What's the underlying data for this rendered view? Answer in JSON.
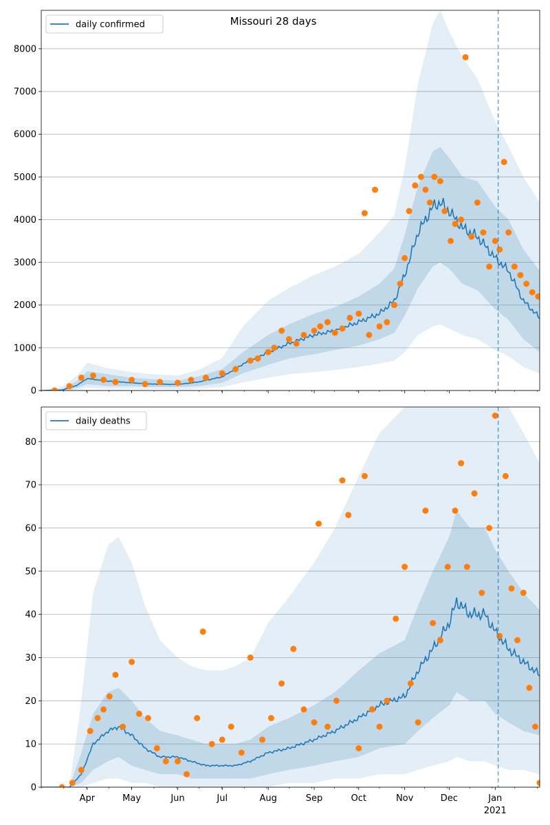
{
  "chart_data": [
    {
      "type": "line",
      "title": "Missouri 28 days",
      "legend": {
        "label": "daily confirmed",
        "position": "top-left"
      },
      "xlim": [
        "2020-03-01",
        "2021-01-31"
      ],
      "ylim": [
        0,
        8900
      ],
      "yticks": [
        0,
        1000,
        2000,
        3000,
        4000,
        5000,
        6000,
        7000,
        8000
      ],
      "grid": "horizontal",
      "colors": {
        "line": "#1f77b4",
        "points": "#ff7f0e",
        "band": "#1f77b4",
        "vline": "#1f77b4"
      },
      "vline_date": "2021-01-03",
      "series": [
        {
          "name": "daily confirmed",
          "x": [
            "2020-03-01",
            "2020-03-15",
            "2020-03-25",
            "2020-04-01",
            "2020-04-15",
            "2020-05-01",
            "2020-05-15",
            "2020-06-01",
            "2020-06-15",
            "2020-07-01",
            "2020-07-15",
            "2020-08-01",
            "2020-08-15",
            "2020-09-01",
            "2020-09-15",
            "2020-10-01",
            "2020-10-15",
            "2020-10-25",
            "2020-11-01",
            "2020-11-10",
            "2020-11-20",
            "2020-11-25",
            "2020-12-01",
            "2020-12-10",
            "2020-12-20",
            "2021-01-01",
            "2021-01-10",
            "2021-01-20",
            "2021-01-31"
          ],
          "values": [
            0,
            10,
            120,
            280,
            220,
            180,
            150,
            140,
            200,
            320,
            620,
            900,
            1100,
            1300,
            1400,
            1600,
            1800,
            2100,
            2700,
            3700,
            4300,
            4400,
            4200,
            3800,
            3600,
            3100,
            2800,
            2100,
            1700
          ],
          "band_inner": [
            [
              0,
              0
            ],
            [
              0,
              40
            ],
            [
              60,
              220
            ],
            [
              150,
              450
            ],
            [
              100,
              380
            ],
            [
              100,
              300
            ],
            [
              80,
              260
            ],
            [
              80,
              230
            ],
            [
              100,
              330
            ],
            [
              180,
              500
            ],
            [
              400,
              900
            ],
            [
              600,
              1300
            ],
            [
              750,
              1550
            ],
            [
              850,
              1800
            ],
            [
              950,
              1950
            ],
            [
              1050,
              2200
            ],
            [
              1200,
              2500
            ],
            [
              1350,
              2850
            ],
            [
              1750,
              3650
            ],
            [
              2400,
              4800
            ],
            [
              2900,
              5600
            ],
            [
              3000,
              5700
            ],
            [
              2850,
              5450
            ],
            [
              2500,
              5000
            ],
            [
              2350,
              4900
            ],
            [
              1900,
              4300
            ],
            [
              1650,
              4000
            ],
            [
              1200,
              3300
            ],
            [
              900,
              2800
            ]
          ],
          "band_outer": [
            [
              0,
              0
            ],
            [
              0,
              90
            ],
            [
              20,
              350
            ],
            [
              70,
              650
            ],
            [
              40,
              520
            ],
            [
              40,
              430
            ],
            [
              30,
              380
            ],
            [
              30,
              350
            ],
            [
              40,
              480
            ],
            [
              80,
              760
            ],
            [
              190,
              1500
            ],
            [
              300,
              2100
            ],
            [
              380,
              2400
            ],
            [
              430,
              2700
            ],
            [
              480,
              2900
            ],
            [
              550,
              3200
            ],
            [
              630,
              3700
            ],
            [
              700,
              4100
            ],
            [
              900,
              5200
            ],
            [
              1300,
              7200
            ],
            [
              1500,
              8600
            ],
            [
              1550,
              8900
            ],
            [
              1450,
              8400
            ],
            [
              1300,
              7800
            ],
            [
              1200,
              7300
            ],
            [
              950,
              6300
            ],
            [
              800,
              5700
            ],
            [
              550,
              5000
            ],
            [
              400,
              4400
            ]
          ],
          "observed_x": [
            "2020-03-10",
            "2020-03-20",
            "2020-03-28",
            "2020-04-05",
            "2020-04-12",
            "2020-04-20",
            "2020-05-01",
            "2020-05-10",
            "2020-05-20",
            "2020-06-01",
            "2020-06-10",
            "2020-06-20",
            "2020-07-01",
            "2020-07-10",
            "2020-07-20",
            "2020-07-25",
            "2020-08-01",
            "2020-08-05",
            "2020-08-10",
            "2020-08-15",
            "2020-08-20",
            "2020-08-25",
            "2020-09-01",
            "2020-09-05",
            "2020-09-10",
            "2020-09-15",
            "2020-09-20",
            "2020-09-25",
            "2020-10-01",
            "2020-10-05",
            "2020-10-08",
            "2020-10-12",
            "2020-10-15",
            "2020-10-20",
            "2020-10-25",
            "2020-10-29",
            "2020-11-01",
            "2020-11-04",
            "2020-11-08",
            "2020-11-12",
            "2020-11-15",
            "2020-11-18",
            "2020-11-21",
            "2020-11-25",
            "2020-11-28",
            "2020-12-02",
            "2020-12-05",
            "2020-12-09",
            "2020-12-12",
            "2020-12-16",
            "2020-12-20",
            "2020-12-24",
            "2020-12-28",
            "2021-01-01",
            "2021-01-04",
            "2021-01-07",
            "2021-01-10",
            "2021-01-14",
            "2021-01-18",
            "2021-01-22",
            "2021-01-26",
            "2021-01-30"
          ],
          "observed": [
            0,
            100,
            300,
            350,
            250,
            200,
            250,
            150,
            200,
            180,
            250,
            300,
            400,
            500,
            700,
            750,
            900,
            1000,
            1400,
            1200,
            1100,
            1300,
            1400,
            1500,
            1600,
            1350,
            1450,
            1700,
            1800,
            4150,
            1300,
            4700,
            1500,
            1600,
            2000,
            2500,
            3100,
            4200,
            4800,
            5000,
            4700,
            4400,
            5000,
            4900,
            4200,
            3500,
            3900,
            4000,
            7800,
            3600,
            4400,
            3700,
            2900,
            3500,
            3300,
            5350,
            3700,
            2900,
            2700,
            2500,
            2300,
            2200
          ]
        }
      ]
    },
    {
      "type": "line",
      "title": "",
      "legend": {
        "label": "daily deaths",
        "position": "top-left"
      },
      "xlim": [
        "2020-03-01",
        "2021-01-31"
      ],
      "ylim": [
        0,
        88
      ],
      "yticks": [
        0,
        10,
        20,
        30,
        40,
        50,
        60,
        70,
        80
      ],
      "xticks": [
        {
          "date": "2020-04-01",
          "label": "Apr"
        },
        {
          "date": "2020-05-01",
          "label": "May"
        },
        {
          "date": "2020-06-01",
          "label": "Jun"
        },
        {
          "date": "2020-07-01",
          "label": "Jul"
        },
        {
          "date": "2020-08-01",
          "label": "Aug"
        },
        {
          "date": "2020-09-01",
          "label": "Sep"
        },
        {
          "date": "2020-10-01",
          "label": "Oct"
        },
        {
          "date": "2020-11-01",
          "label": "Nov"
        },
        {
          "date": "2020-12-01",
          "label": "Dec"
        },
        {
          "date": "2021-01-01",
          "label": "Jan"
        }
      ],
      "year_label": "2021",
      "grid": "horizontal",
      "colors": {
        "line": "#1f77b4",
        "points": "#ff7f0e",
        "band": "#1f77b4",
        "vline": "#1f77b4"
      },
      "vline_date": "2021-01-03",
      "series": [
        {
          "name": "daily deaths",
          "x": [
            "2020-03-01",
            "2020-03-20",
            "2020-03-28",
            "2020-04-05",
            "2020-04-15",
            "2020-04-22",
            "2020-05-01",
            "2020-05-10",
            "2020-05-20",
            "2020-06-01",
            "2020-06-10",
            "2020-06-20",
            "2020-07-01",
            "2020-07-10",
            "2020-07-20",
            "2020-08-01",
            "2020-08-15",
            "2020-09-01",
            "2020-09-15",
            "2020-10-01",
            "2020-10-15",
            "2020-11-01",
            "2020-11-10",
            "2020-11-20",
            "2020-12-01",
            "2020-12-06",
            "2020-12-15",
            "2020-12-25",
            "2021-01-01",
            "2021-01-10",
            "2021-01-20",
            "2021-01-31"
          ],
          "values": [
            0,
            0,
            3,
            10,
            13,
            14,
            12,
            9,
            7,
            7,
            6,
            5,
            5,
            5,
            6,
            8,
            9,
            11,
            13,
            16,
            19,
            21,
            27,
            32,
            38,
            43,
            40,
            40,
            36,
            32,
            29,
            26
          ],
          "band_inner": [
            [
              0,
              0
            ],
            [
              0,
              0
            ],
            [
              1,
              8
            ],
            [
              4,
              17
            ],
            [
              6,
              22
            ],
            [
              7,
              23
            ],
            [
              5,
              20
            ],
            [
              4,
              16
            ],
            [
              3,
              13
            ],
            [
              3,
              12
            ],
            [
              2,
              11
            ],
            [
              2,
              10
            ],
            [
              2,
              10
            ],
            [
              2,
              10
            ],
            [
              2,
              11
            ],
            [
              3,
              14
            ],
            [
              4,
              16
            ],
            [
              5,
              19
            ],
            [
              6,
              22
            ],
            [
              7,
              27
            ],
            [
              9,
              31
            ],
            [
              10,
              34
            ],
            [
              13,
              42
            ],
            [
              16,
              50
            ],
            [
              19,
              58
            ],
            [
              22,
              64
            ],
            [
              20,
              60
            ],
            [
              20,
              60
            ],
            [
              17,
              55
            ],
            [
              15,
              50
            ],
            [
              13,
              45
            ],
            [
              12,
              41
            ]
          ],
          "band_outer": [
            [
              0,
              0
            ],
            [
              0,
              0
            ],
            [
              0,
              20
            ],
            [
              1,
              45
            ],
            [
              2,
              56
            ],
            [
              2,
              58
            ],
            [
              1,
              52
            ],
            [
              1,
              42
            ],
            [
              0,
              34
            ],
            [
              0,
              30
            ],
            [
              0,
              28
            ],
            [
              0,
              27
            ],
            [
              0,
              27
            ],
            [
              0,
              28
            ],
            [
              0,
              30
            ],
            [
              0,
              38
            ],
            [
              1,
              44
            ],
            [
              1,
              52
            ],
            [
              2,
              60
            ],
            [
              2,
              72
            ],
            [
              3,
              82
            ],
            [
              3,
              88
            ],
            [
              4,
              88
            ],
            [
              5,
              88
            ],
            [
              6,
              88
            ],
            [
              7,
              88
            ],
            [
              6,
              88
            ],
            [
              6,
              88
            ],
            [
              5,
              88
            ],
            [
              4,
              88
            ],
            [
              4,
              82
            ],
            [
              3,
              75
            ]
          ],
          "observed_x": [
            "2020-03-15",
            "2020-03-22",
            "2020-03-28",
            "2020-04-03",
            "2020-04-08",
            "2020-04-12",
            "2020-04-16",
            "2020-04-20",
            "2020-04-25",
            "2020-05-01",
            "2020-05-06",
            "2020-05-12",
            "2020-05-18",
            "2020-05-24",
            "2020-06-01",
            "2020-06-07",
            "2020-06-14",
            "2020-06-18",
            "2020-06-24",
            "2020-07-01",
            "2020-07-07",
            "2020-07-14",
            "2020-07-20",
            "2020-07-28",
            "2020-08-03",
            "2020-08-10",
            "2020-08-18",
            "2020-08-25",
            "2020-09-01",
            "2020-09-04",
            "2020-09-10",
            "2020-09-16",
            "2020-09-20",
            "2020-09-24",
            "2020-10-01",
            "2020-10-05",
            "2020-10-10",
            "2020-10-15",
            "2020-10-20",
            "2020-10-26",
            "2020-11-01",
            "2020-11-05",
            "2020-11-10",
            "2020-11-15",
            "2020-11-20",
            "2020-11-25",
            "2020-11-30",
            "2020-12-05",
            "2020-12-09",
            "2020-12-13",
            "2020-12-18",
            "2020-12-23",
            "2020-12-28",
            "2021-01-01",
            "2021-01-04",
            "2021-01-08",
            "2021-01-12",
            "2021-01-16",
            "2021-01-20",
            "2021-01-24",
            "2021-01-28",
            "2021-01-31"
          ],
          "observed": [
            0,
            1,
            4,
            13,
            16,
            18,
            21,
            26,
            14,
            29,
            17,
            16,
            9,
            6,
            6,
            3,
            16,
            36,
            10,
            11,
            14,
            8,
            30,
            11,
            16,
            24,
            32,
            18,
            15,
            61,
            14,
            20,
            71,
            63,
            9,
            72,
            18,
            14,
            20,
            39,
            51,
            24,
            15,
            64,
            38,
            34,
            51,
            64,
            75,
            51,
            68,
            45,
            60,
            86,
            35,
            72,
            46,
            34,
            45,
            23,
            14,
            1
          ]
        }
      ]
    }
  ]
}
